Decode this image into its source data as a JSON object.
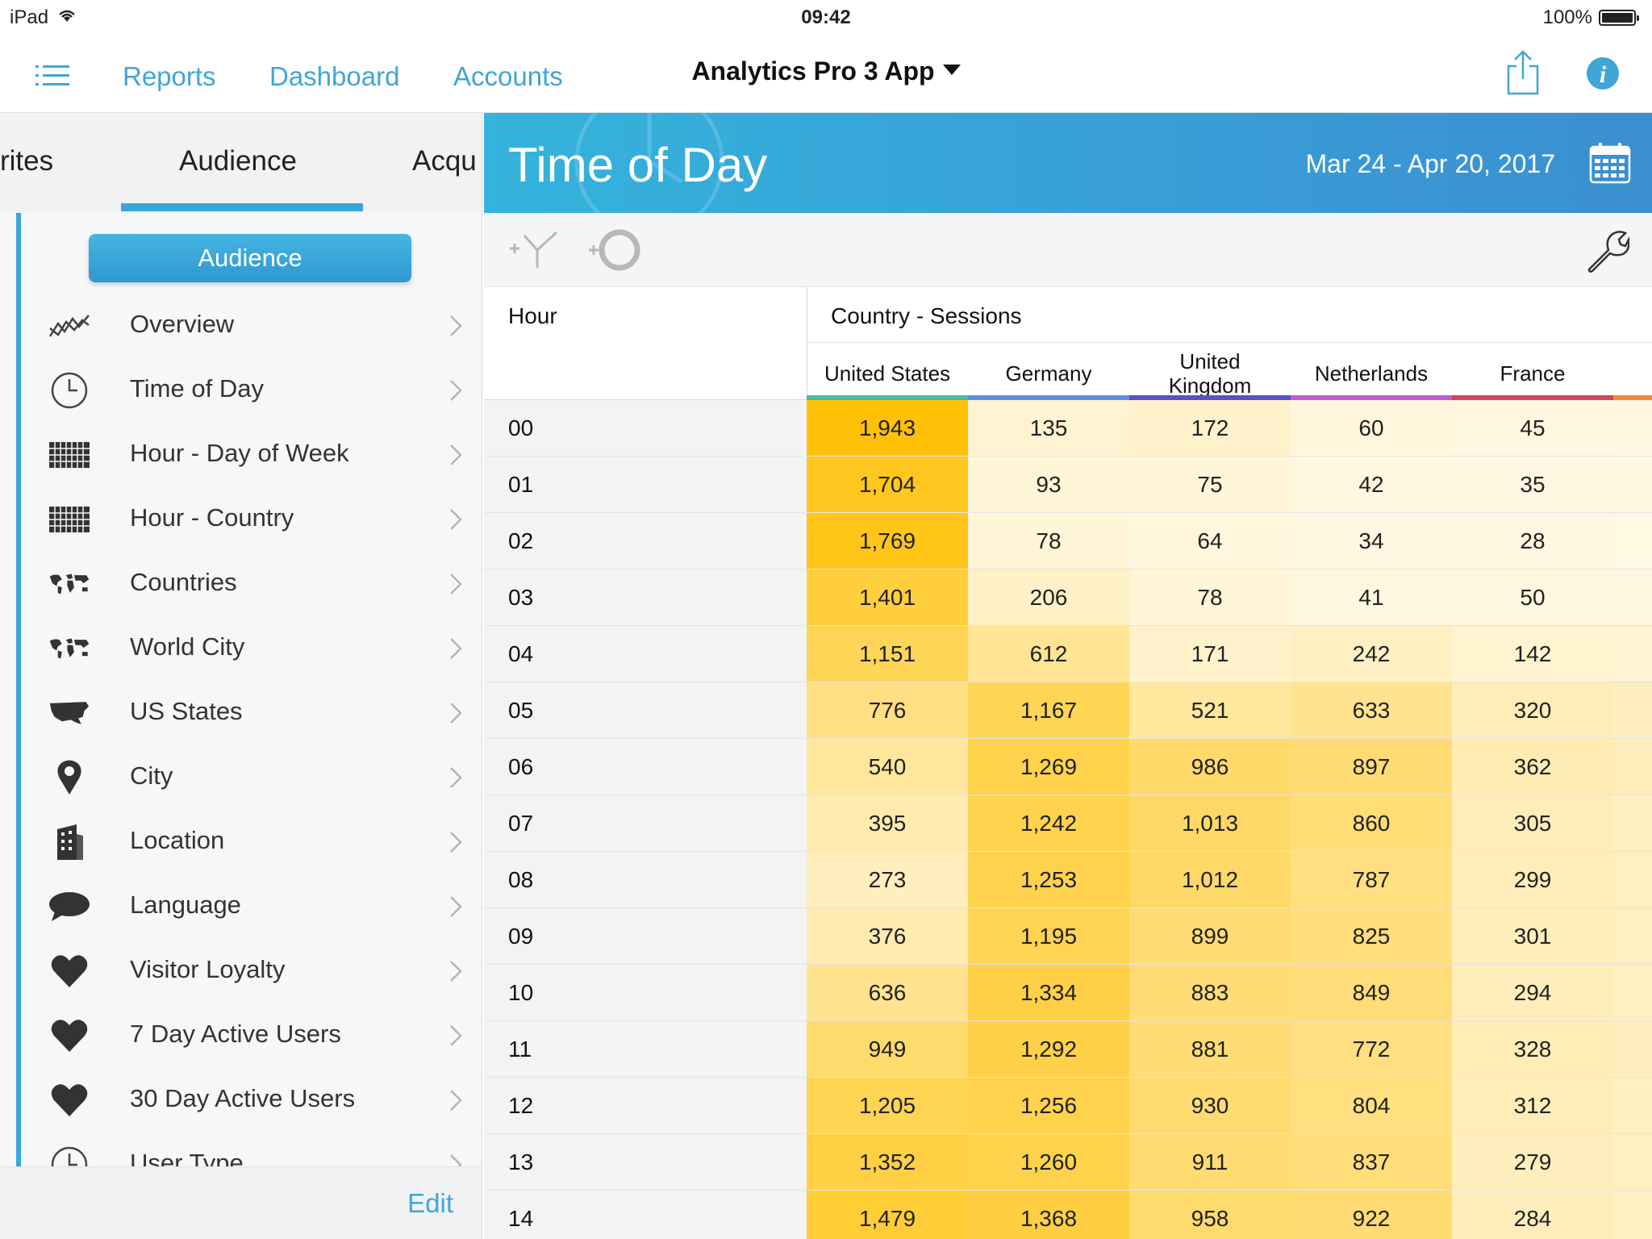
{
  "status_bar": {
    "device": "iPad",
    "time": "09:42",
    "battery": "100%",
    "battery_level": 1.0
  },
  "nav": {
    "links": [
      "Reports",
      "Dashboard",
      "Accounts"
    ],
    "app_title": "Analytics Pro 3 App",
    "icons": [
      "list-icon",
      "share-icon",
      "info-icon"
    ]
  },
  "left_panel": {
    "tabs": [
      "rites",
      "Audience",
      "Acqu"
    ],
    "active_tab": "Audience",
    "section_button": "Audience",
    "menu": [
      {
        "label": "Overview",
        "icon": "trend-lines-icon"
      },
      {
        "label": "Time of Day",
        "icon": "clock-icon"
      },
      {
        "label": "Hour - Day of Week",
        "icon": "grid-icon"
      },
      {
        "label": "Hour - Country",
        "icon": "grid-icon"
      },
      {
        "label": "Countries",
        "icon": "world-map-icon"
      },
      {
        "label": "World City",
        "icon": "world-map-icon"
      },
      {
        "label": "US States",
        "icon": "us-map-icon"
      },
      {
        "label": "City",
        "icon": "map-pin-icon"
      },
      {
        "label": "Location",
        "icon": "building-icon"
      },
      {
        "label": "Language",
        "icon": "speech-bubble-icon"
      },
      {
        "label": "Visitor Loyalty",
        "icon": "heart-icon"
      },
      {
        "label": "7 Day Active Users",
        "icon": "heart-icon"
      },
      {
        "label": "30 Day Active Users",
        "icon": "heart-icon"
      },
      {
        "label": "User Type",
        "icon": "clock-icon"
      }
    ],
    "edit_label": "Edit"
  },
  "report": {
    "title": "Time of Day",
    "date_range": "Mar 24 - Apr 20, 2017",
    "toolbar_icons": [
      "add-segment-icon",
      "add-compare-icon",
      "wrench-icon"
    ],
    "hour_header": "Hour",
    "group_header": "Country - Sessions",
    "columns": [
      {
        "name": "United States",
        "color": "#3fbfa8"
      },
      {
        "name": "Germany",
        "color": "#5b8ee6"
      },
      {
        "name": "United\nKingdom",
        "color": "#5a4fcf"
      },
      {
        "name": "Netherlands",
        "color": "#c25ad8"
      },
      {
        "name": "France",
        "color": "#d94060"
      }
    ],
    "extra_column_color": "#f08a3a",
    "rows": [
      {
        "hour": "00",
        "values": [
          "1,943",
          "135",
          "172",
          "60",
          "45"
        ]
      },
      {
        "hour": "01",
        "values": [
          "1,704",
          "93",
          "75",
          "42",
          "35"
        ]
      },
      {
        "hour": "02",
        "values": [
          "1,769",
          "78",
          "64",
          "34",
          "28"
        ]
      },
      {
        "hour": "03",
        "values": [
          "1,401",
          "206",
          "78",
          "41",
          "50"
        ]
      },
      {
        "hour": "04",
        "values": [
          "1,151",
          "612",
          "171",
          "242",
          "142"
        ]
      },
      {
        "hour": "05",
        "values": [
          "776",
          "1,167",
          "521",
          "633",
          "320"
        ]
      },
      {
        "hour": "06",
        "values": [
          "540",
          "1,269",
          "986",
          "897",
          "362"
        ]
      },
      {
        "hour": "07",
        "values": [
          "395",
          "1,242",
          "1,013",
          "860",
          "305"
        ]
      },
      {
        "hour": "08",
        "values": [
          "273",
          "1,253",
          "1,012",
          "787",
          "299"
        ]
      },
      {
        "hour": "09",
        "values": [
          "376",
          "1,195",
          "899",
          "825",
          "301"
        ]
      },
      {
        "hour": "10",
        "values": [
          "636",
          "1,334",
          "883",
          "849",
          "294"
        ]
      },
      {
        "hour": "11",
        "values": [
          "949",
          "1,292",
          "881",
          "772",
          "328"
        ]
      },
      {
        "hour": "12",
        "values": [
          "1,205",
          "1,256",
          "930",
          "804",
          "312"
        ]
      },
      {
        "hour": "13",
        "values": [
          "1,352",
          "1,260",
          "911",
          "837",
          "279"
        ]
      },
      {
        "hour": "14",
        "values": [
          "1,479",
          "1,368",
          "958",
          "922",
          "284"
        ]
      }
    ]
  },
  "colors": {
    "accent": "#3fa6d6",
    "heat_low": "#fff9e8",
    "heat_high": "#ffc107"
  }
}
